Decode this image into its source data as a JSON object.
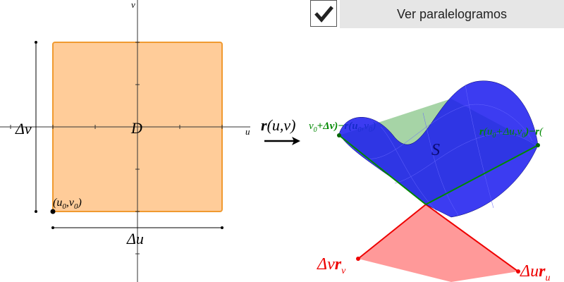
{
  "checkbox": {
    "label": "Ver paralelogramos",
    "checked": true
  },
  "domain_plot": {
    "axis_u": "u",
    "axis_v": "v",
    "region_label": "D",
    "delta_v": "Δv",
    "delta_u": "Δu",
    "point_label": [
      "(u",
      "0",
      ",v",
      "0",
      ")"
    ]
  },
  "mapping_label": [
    "r",
    "(u,v)"
  ],
  "surface": {
    "label": "S",
    "green_label_left": [
      "v",
      "0",
      "+Δv)−r(u",
      "0",
      ",v",
      "0",
      ")"
    ],
    "green_label_right": [
      "r",
      "(u",
      "0",
      "+Δu,v",
      "0",
      ")−",
      "r",
      "("
    ],
    "red_label_left": [
      "Δv",
      "r",
      "v"
    ],
    "red_label_right": [
      "Δu",
      "r",
      "u"
    ]
  }
}
